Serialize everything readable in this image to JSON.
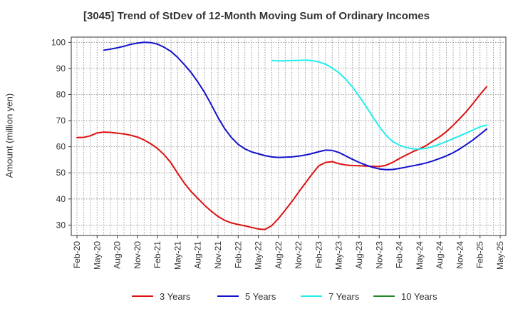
{
  "chart_data": {
    "type": "line",
    "title": "[3045]  Trend of StDev of 12-Month Moving Sum of Ordinary Incomes",
    "xlabel": "",
    "ylabel": "Amount (million yen)",
    "ylim": [
      26,
      102
    ],
    "yticks": [
      30,
      40,
      50,
      60,
      70,
      80,
      90,
      100
    ],
    "xticks": [
      "Feb-20",
      "May-20",
      "Aug-20",
      "Nov-20",
      "Feb-21",
      "May-21",
      "Aug-21",
      "Nov-21",
      "Feb-22",
      "May-22",
      "Aug-22",
      "Nov-22",
      "Feb-23",
      "May-23",
      "Aug-23",
      "Nov-23",
      "Feb-24",
      "May-24",
      "Aug-24",
      "Nov-24",
      "Feb-25",
      "May-25"
    ],
    "grid": true,
    "legend_position": "bottom",
    "series": [
      {
        "name": "3 Years",
        "color": "#dd1111",
        "points": [
          [
            "Feb-20",
            63.5
          ],
          [
            "Mar-20",
            63.6
          ],
          [
            "Apr-20",
            64.2
          ],
          [
            "May-20",
            65.3
          ],
          [
            "Jun-20",
            65.6
          ],
          [
            "Jul-20",
            65.5
          ],
          [
            "Aug-20",
            65.2
          ],
          [
            "Sep-20",
            64.9
          ],
          [
            "Oct-20",
            64.4
          ],
          [
            "Nov-20",
            63.7
          ],
          [
            "Dec-20",
            62.6
          ],
          [
            "Jan-21",
            61.1
          ],
          [
            "Feb-21",
            59.3
          ],
          [
            "Mar-21",
            56.9
          ],
          [
            "Apr-21",
            53.8
          ],
          [
            "May-21",
            49.8
          ],
          [
            "Jun-21",
            46.0
          ],
          [
            "Jul-21",
            42.8
          ],
          [
            "Aug-21",
            40.2
          ],
          [
            "Sep-21",
            37.6
          ],
          [
            "Oct-21",
            35.3
          ],
          [
            "Nov-21",
            33.3
          ],
          [
            "Dec-21",
            31.8
          ],
          [
            "Jan-22",
            30.8
          ],
          [
            "Feb-22",
            30.2
          ],
          [
            "Mar-22",
            29.7
          ],
          [
            "Apr-22",
            29.1
          ],
          [
            "May-22",
            28.5
          ],
          [
            "Jun-22",
            28.3
          ],
          [
            "Jul-22",
            29.8
          ],
          [
            "Aug-22",
            32.5
          ],
          [
            "Sep-22",
            35.7
          ],
          [
            "Oct-22",
            39.0
          ],
          [
            "Nov-22",
            42.6
          ],
          [
            "Dec-22",
            46.1
          ],
          [
            "Jan-23",
            49.5
          ],
          [
            "Feb-23",
            52.7
          ],
          [
            "Mar-23",
            54.0
          ],
          [
            "Apr-23",
            54.3
          ],
          [
            "May-23",
            53.5
          ],
          [
            "Jun-23",
            53.0
          ],
          [
            "Jul-23",
            52.8
          ],
          [
            "Aug-23",
            52.7
          ],
          [
            "Sep-23",
            52.6
          ],
          [
            "Oct-23",
            52.5
          ],
          [
            "Nov-23",
            52.4
          ],
          [
            "Dec-23",
            52.9
          ],
          [
            "Jan-24",
            54.0
          ],
          [
            "Feb-24",
            55.5
          ],
          [
            "Mar-24",
            56.8
          ],
          [
            "Apr-24",
            58.1
          ],
          [
            "May-24",
            59.2
          ],
          [
            "Jun-24",
            60.5
          ],
          [
            "Jul-24",
            62.2
          ],
          [
            "Aug-24",
            63.8
          ],
          [
            "Sep-24",
            65.8
          ],
          [
            "Oct-24",
            68.2
          ],
          [
            "Nov-24",
            70.8
          ],
          [
            "Dec-24",
            73.6
          ],
          [
            "Jan-25",
            76.7
          ],
          [
            "Feb-25",
            80.0
          ],
          [
            "Mar-25",
            83.0
          ]
        ]
      },
      {
        "name": "5 Years",
        "color": "#1111cc",
        "points": [
          [
            "Jun-20",
            97.0
          ],
          [
            "Jul-20",
            97.4
          ],
          [
            "Aug-20",
            97.9
          ],
          [
            "Sep-20",
            98.5
          ],
          [
            "Oct-20",
            99.2
          ],
          [
            "Nov-20",
            99.7
          ],
          [
            "Dec-20",
            100.0
          ],
          [
            "Jan-21",
            99.9
          ],
          [
            "Feb-21",
            99.3
          ],
          [
            "Mar-21",
            98.1
          ],
          [
            "Apr-21",
            96.5
          ],
          [
            "May-21",
            94.2
          ],
          [
            "Jun-21",
            91.4
          ],
          [
            "Jul-21",
            88.4
          ],
          [
            "Aug-21",
            84.8
          ],
          [
            "Sep-21",
            80.8
          ],
          [
            "Oct-21",
            76.1
          ],
          [
            "Nov-21",
            71.2
          ],
          [
            "Dec-21",
            66.9
          ],
          [
            "Jan-22",
            63.5
          ],
          [
            "Feb-22",
            60.9
          ],
          [
            "Mar-22",
            59.2
          ],
          [
            "Apr-22",
            58.0
          ],
          [
            "May-22",
            57.3
          ],
          [
            "Jun-22",
            56.6
          ],
          [
            "Jul-22",
            56.1
          ],
          [
            "Aug-22",
            55.9
          ],
          [
            "Sep-22",
            56.0
          ],
          [
            "Oct-22",
            56.1
          ],
          [
            "Nov-22",
            56.4
          ],
          [
            "Dec-22",
            56.8
          ],
          [
            "Jan-23",
            57.4
          ],
          [
            "Feb-23",
            58.1
          ],
          [
            "Mar-23",
            58.7
          ],
          [
            "Apr-23",
            58.6
          ],
          [
            "May-23",
            57.8
          ],
          [
            "Jun-23",
            56.5
          ],
          [
            "Jul-23",
            55.2
          ],
          [
            "Aug-23",
            54.0
          ],
          [
            "Sep-23",
            53.0
          ],
          [
            "Oct-23",
            52.1
          ],
          [
            "Nov-23",
            51.5
          ],
          [
            "Dec-23",
            51.2
          ],
          [
            "Jan-24",
            51.3
          ],
          [
            "Feb-24",
            51.7
          ],
          [
            "Mar-24",
            52.2
          ],
          [
            "Apr-24",
            52.7
          ],
          [
            "May-24",
            53.2
          ],
          [
            "Jun-24",
            53.8
          ],
          [
            "Jul-24",
            54.6
          ],
          [
            "Aug-24",
            55.5
          ],
          [
            "Sep-24",
            56.5
          ],
          [
            "Oct-24",
            57.7
          ],
          [
            "Nov-24",
            59.2
          ],
          [
            "Dec-24",
            60.9
          ],
          [
            "Jan-25",
            62.7
          ],
          [
            "Feb-25",
            64.7
          ],
          [
            "Mar-25",
            66.8
          ]
        ]
      },
      {
        "name": "7 Years",
        "color": "#22eeee",
        "points": [
          [
            "Jul-22",
            93.0
          ],
          [
            "Aug-22",
            92.9
          ],
          [
            "Sep-22",
            92.9
          ],
          [
            "Oct-22",
            93.0
          ],
          [
            "Nov-22",
            93.1
          ],
          [
            "Dec-22",
            93.2
          ],
          [
            "Jan-23",
            93.0
          ],
          [
            "Feb-23",
            92.5
          ],
          [
            "Mar-23",
            91.6
          ],
          [
            "Apr-23",
            90.2
          ],
          [
            "May-23",
            88.3
          ],
          [
            "Jun-23",
            85.9
          ],
          [
            "Jul-23",
            82.9
          ],
          [
            "Aug-23",
            79.4
          ],
          [
            "Sep-23",
            75.6
          ],
          [
            "Oct-23",
            71.6
          ],
          [
            "Nov-23",
            67.7
          ],
          [
            "Dec-23",
            64.4
          ],
          [
            "Jan-24",
            62.0
          ],
          [
            "Feb-24",
            60.6
          ],
          [
            "Mar-24",
            59.7
          ],
          [
            "Apr-24",
            59.2
          ],
          [
            "May-24",
            59.1
          ],
          [
            "Jun-24",
            59.4
          ],
          [
            "Jul-24",
            60.1
          ],
          [
            "Aug-24",
            61.0
          ],
          [
            "Sep-24",
            62.0
          ],
          [
            "Oct-24",
            63.1
          ],
          [
            "Nov-24",
            64.2
          ],
          [
            "Dec-24",
            65.3
          ],
          [
            "Jan-25",
            66.5
          ],
          [
            "Feb-25",
            67.6
          ],
          [
            "Mar-25",
            68.3
          ]
        ]
      },
      {
        "name": "10 Years",
        "color": "#228822",
        "points": []
      }
    ]
  }
}
